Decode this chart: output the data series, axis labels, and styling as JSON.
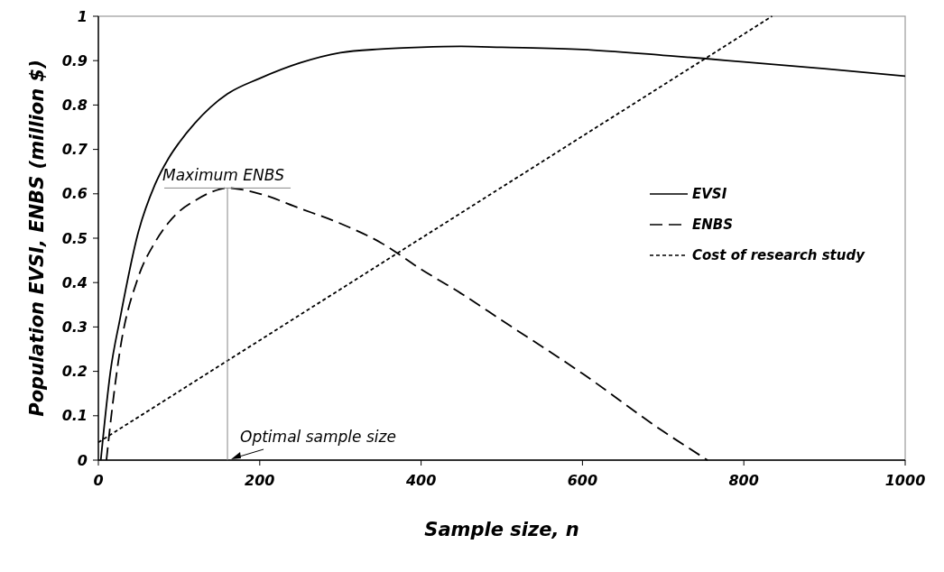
{
  "chart_data": {
    "type": "line",
    "xlabel": "Sample size, n",
    "ylabel": "Population EVSI, ENBS (million $)",
    "xlim": [
      0,
      1000
    ],
    "xticks": [
      0,
      200,
      400,
      600,
      800,
      1000
    ],
    "ylim": [
      0,
      1
    ],
    "yticks": [
      0,
      0.1,
      0.2,
      0.3,
      0.4,
      0.5,
      0.6,
      0.7,
      0.8,
      0.9,
      1
    ],
    "grid": false,
    "legend": "right",
    "marker": "none",
    "series": [
      {
        "name": "EVSI",
        "color": "#000000",
        "line_style": "solid",
        "x": [
          3,
          15,
          27,
          49,
          70,
          87,
          100,
          120,
          139,
          160,
          200,
          250,
          300,
          350,
          400,
          450,
          500,
          600,
          700,
          750,
          800,
          900,
          1000
        ],
        "values": [
          0,
          0.2,
          0.32,
          0.51,
          0.62,
          0.68,
          0.715,
          0.76,
          0.795,
          0.825,
          0.86,
          0.895,
          0.918,
          0.926,
          0.93,
          0.932,
          0.93,
          0.925,
          0.912,
          0.905,
          0.897,
          0.882,
          0.865
        ]
      },
      {
        "name": "ENBS",
        "color": "#000000",
        "line_style": "dashed",
        "x": [
          10,
          18,
          27,
          49,
          70,
          87,
          100,
          120,
          139,
          160,
          200,
          250,
          300,
          350,
          400,
          450,
          500,
          600,
          700,
          755
        ],
        "values": [
          0,
          0.13,
          0.25,
          0.41,
          0.49,
          0.535,
          0.56,
          0.585,
          0.603,
          0.613,
          0.6,
          0.567,
          0.533,
          0.49,
          0.43,
          0.375,
          0.315,
          0.195,
          0.065,
          0
        ]
      },
      {
        "name": "Cost of research study",
        "color": "#000000",
        "line_style": "dotted",
        "x": [
          0,
          835
        ],
        "values": [
          0.04,
          1
        ]
      }
    ],
    "annotations": [
      {
        "text": "Maximum ENBS",
        "x": 160,
        "y": 0.613
      },
      {
        "text": "Optimal sample size",
        "x": 160,
        "y": 0
      }
    ],
    "ref_lines": [
      {
        "axis": "x",
        "value": 160,
        "color": "#888888"
      }
    ]
  }
}
